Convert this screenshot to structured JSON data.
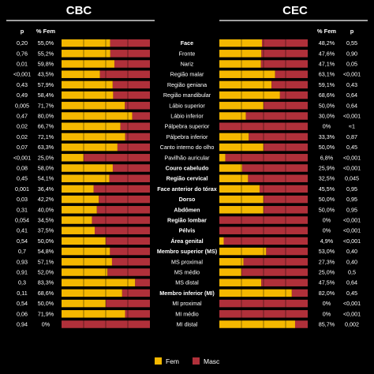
{
  "colors": {
    "fem": "#f5b800",
    "masc": "#b0303a",
    "highlight_p": "#f5b800",
    "text": "#ffffff",
    "grid": "#000000"
  },
  "chart_data": [
    {
      "type": "bar",
      "stacked": true,
      "orientation": "horizontal",
      "title": "CBC",
      "col_p": "p",
      "col_fem": "% Fem",
      "p_values": [
        "0,20",
        "0,76",
        "0,01",
        "<0,001",
        "0,43",
        "0,49",
        "0,005",
        "0,47",
        "0,02",
        "0,02",
        "0,07",
        "<0,001",
        "0,08",
        "0,45",
        "0,001",
        "0,03",
        "0,31",
        "0,054",
        "0,41",
        "0,54",
        "0,7",
        "0,93",
        "0,91",
        "0,3",
        "0,11",
        "0,54",
        "0,06",
        "0,94"
      ],
      "p_highlight": [
        false,
        false,
        true,
        true,
        false,
        false,
        true,
        false,
        false,
        true,
        false,
        true,
        false,
        false,
        true,
        true,
        false,
        false,
        false,
        false,
        false,
        false,
        false,
        false,
        false,
        false,
        false,
        false
      ],
      "fem_labels": [
        "55,0%",
        "55,2%",
        "59,8%",
        "43,5%",
        "57,9%",
        "58,4%",
        "71,7%",
        "80,0%",
        "66,7%",
        "72,1%",
        "63,3%",
        "25,0%",
        "58,0%",
        "54,1%",
        "36,4%",
        "42,2%",
        "40,0%",
        "34,5%",
        "37,5%",
        "50,0%",
        "54,8%",
        "57,1%",
        "52,0%",
        "83,3%",
        "68,6%",
        "50,0%",
        "71,9%",
        "0%"
      ],
      "values_fem_pct": [
        55.0,
        55.2,
        59.8,
        43.5,
        57.9,
        58.4,
        71.7,
        80.0,
        66.7,
        72.1,
        63.3,
        25.0,
        58.0,
        54.1,
        36.4,
        42.2,
        40.0,
        34.5,
        37.5,
        50.0,
        54.8,
        57.1,
        52.0,
        83.3,
        68.6,
        50.0,
        71.9,
        0
      ]
    },
    {
      "type": "bar",
      "stacked": true,
      "orientation": "horizontal",
      "title": "CEC",
      "col_p": "p",
      "col_fem": "% Fem",
      "p_values": [
        "0,55",
        "0,90",
        "0,05",
        "<0,001",
        "0,43",
        "0,64",
        "0,64",
        "<0,001",
        "≈1",
        "0,87",
        "0,45",
        "<0,001",
        "<0,001",
        "0,045",
        "0,95",
        "0,95",
        "0,95",
        "<0,001",
        "<0,001",
        "<0,001",
        "0,40",
        "0,40",
        "0,5",
        "0,64",
        "0,45",
        "<0,001",
        "<0,001",
        "0,002"
      ],
      "p_highlight": [
        false,
        false,
        false,
        true,
        false,
        false,
        false,
        true,
        false,
        false,
        false,
        true,
        true,
        true,
        false,
        false,
        false,
        true,
        true,
        true,
        false,
        false,
        false,
        false,
        false,
        true,
        true,
        true
      ],
      "fem_labels": [
        "48,2%",
        "47,6%",
        "47,1%",
        "63,1%",
        "59,1%",
        "68,6%",
        "50,0%",
        "30,0%",
        "0%",
        "33,3%",
        "50,0%",
        "6,8%",
        "25,9%",
        "32,5%",
        "45,5%",
        "50,0%",
        "50,0%",
        "0%",
        "0%",
        "4,9%",
        "53,0%",
        "27,3%",
        "25,0%",
        "47,5%",
        "82,0%",
        "0%",
        "0%",
        "85,7%"
      ],
      "values_fem_pct": [
        48.2,
        47.6,
        47.1,
        63.1,
        59.1,
        68.6,
        50.0,
        30.0,
        0,
        33.3,
        50.0,
        6.8,
        25.9,
        32.5,
        45.5,
        50.0,
        50.0,
        0,
        0,
        4.9,
        53.0,
        27.3,
        25.0,
        47.5,
        82.0,
        0,
        0,
        85.7
      ]
    }
  ],
  "categories": [
    "Face",
    "Fronte",
    "Nariz",
    "Região malar",
    "Região geniana",
    "Região mandibular",
    "Lábio superior",
    "Lábio inferior",
    "Pálpebra superior",
    "Pálpebra inferior",
    "Canto interno do olho",
    "Pavilhão auricular",
    "Couro cabeludo",
    "Região cervical",
    "Face anterior do tórax",
    "Dorso",
    "Abdômen",
    "Região lombar",
    "Pélvis",
    "Área genital",
    "Membro superior (MS)",
    "MS proximal",
    "MS médio",
    "MS distal",
    "Membro inferior (MI)",
    "MI proximal",
    "MI médio",
    "MI distal"
  ],
  "category_bold": [
    true,
    false,
    false,
    false,
    false,
    false,
    false,
    false,
    false,
    false,
    false,
    false,
    true,
    true,
    true,
    true,
    true,
    true,
    true,
    true,
    true,
    false,
    false,
    false,
    true,
    false,
    false,
    false
  ],
  "legend": {
    "fem": "Fem",
    "masc": "Masc"
  }
}
